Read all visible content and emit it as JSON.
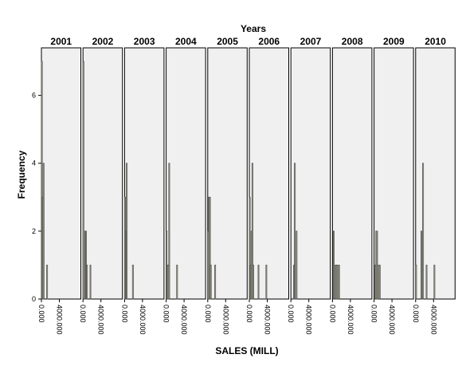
{
  "chart_data": {
    "type": "bar",
    "title": "Years",
    "xlabel": "SALES (MILL)",
    "ylabel": "Frequency",
    "y_ticks": [
      "0",
      "2",
      "4",
      "6"
    ],
    "x_ticks": [
      "0.000",
      "4000.000"
    ],
    "ylim": [
      0,
      7.4
    ],
    "xlim": [
      0,
      8800
    ],
    "bin_width": 195,
    "grid": false,
    "background": "#f0f0f0",
    "bar_color": "#f2f2c4",
    "bar_stroke": "#4d4d4d",
    "panels": [
      {
        "label": "2001",
        "bars": [
          {
            "x": 0,
            "count": 7
          },
          {
            "x": 195,
            "count": 3
          },
          {
            "x": 390,
            "count": 4
          },
          {
            "x": 1170,
            "count": 1
          }
        ]
      },
      {
        "label": "2002",
        "bars": [
          {
            "x": 0,
            "count": 7
          },
          {
            "x": 390,
            "count": 2
          },
          {
            "x": 585,
            "count": 2
          },
          {
            "x": 780,
            "count": 1
          },
          {
            "x": 1560,
            "count": 1
          }
        ]
      },
      {
        "label": "2003",
        "bars": [
          {
            "x": 0,
            "count": 3
          },
          {
            "x": 195,
            "count": 2
          },
          {
            "x": 390,
            "count": 4
          },
          {
            "x": 1755,
            "count": 1
          }
        ]
      },
      {
        "label": "2004",
        "bars": [
          {
            "x": 0,
            "count": 2
          },
          {
            "x": 195,
            "count": 1
          },
          {
            "x": 390,
            "count": 1
          },
          {
            "x": 585,
            "count": 4
          },
          {
            "x": 2340,
            "count": 1
          }
        ]
      },
      {
        "label": "2005",
        "bars": [
          {
            "x": 0,
            "count": 2
          },
          {
            "x": 195,
            "count": 3
          },
          {
            "x": 390,
            "count": 3
          },
          {
            "x": 585,
            "count": 1
          },
          {
            "x": 1560,
            "count": 1
          }
        ]
      },
      {
        "label": "2006",
        "bars": [
          {
            "x": 0,
            "count": 3
          },
          {
            "x": 195,
            "count": 1
          },
          {
            "x": 390,
            "count": 2
          },
          {
            "x": 585,
            "count": 4
          },
          {
            "x": 780,
            "count": 1
          },
          {
            "x": 1950,
            "count": 1
          },
          {
            "x": 3705,
            "count": 1
          }
        ]
      },
      {
        "label": "2007",
        "bars": [
          {
            "x": 585,
            "count": 1
          },
          {
            "x": 780,
            "count": 4
          },
          {
            "x": 1170,
            "count": 2
          }
        ]
      },
      {
        "label": "2008",
        "bars": [
          {
            "x": 195,
            "count": 2
          },
          {
            "x": 585,
            "count": 1
          },
          {
            "x": 780,
            "count": 1
          },
          {
            "x": 975,
            "count": 1
          },
          {
            "x": 1365,
            "count": 1
          }
        ]
      },
      {
        "label": "2009",
        "bars": [
          {
            "x": 195,
            "count": 1
          },
          {
            "x": 390,
            "count": 2
          },
          {
            "x": 585,
            "count": 2
          },
          {
            "x": 780,
            "count": 1
          },
          {
            "x": 1170,
            "count": 1
          }
        ]
      },
      {
        "label": "2010",
        "bars": [
          {
            "x": 0,
            "count": 1
          },
          {
            "x": 1170,
            "count": 2
          },
          {
            "x": 1560,
            "count": 4
          },
          {
            "x": 2340,
            "count": 1
          },
          {
            "x": 4095,
            "count": 1
          }
        ]
      }
    ]
  }
}
